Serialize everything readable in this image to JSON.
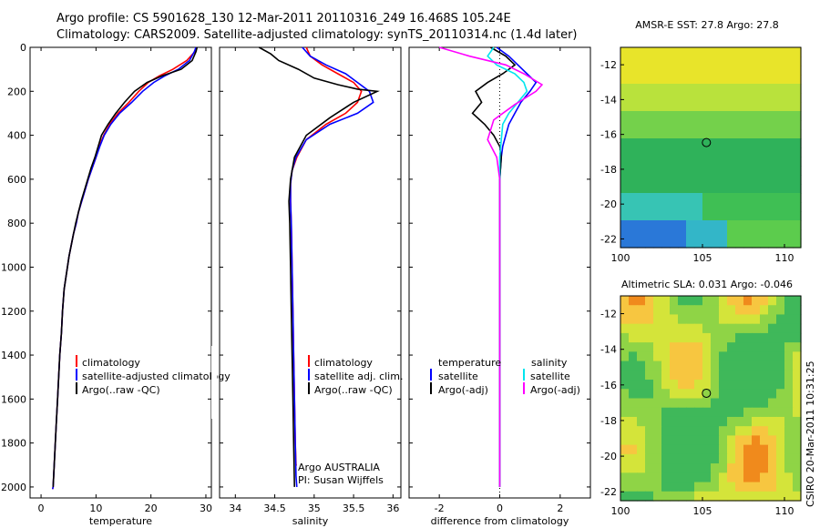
{
  "header": {
    "line1": "Argo profile: CS 5901628_130 12-Mar-2011 20110316_249 16.468S 105.24E",
    "line2": "Climatology: CARS2009. Satellite-adjusted climatology: synTS_20110314.nc (1.4d later)"
  },
  "footer": {
    "side_label": "CSIRO 20-Mar-2011 10:31:25"
  },
  "colors": {
    "climatology": "#ff0000",
    "satellite": "#0000ff",
    "argo": "#000000",
    "sal_sat": "#00e5ee",
    "sal_argo": "#ff00ff"
  },
  "chart_data": [
    {
      "type": "line",
      "id": "temperature",
      "xlabel": "temperature",
      "ylabel": "",
      "xlim": [
        -2,
        31
      ],
      "ylim": [
        2050,
        0
      ],
      "xticks": [
        0,
        10,
        20,
        30
      ],
      "yticks": [
        0,
        200,
        400,
        600,
        800,
        1000,
        1200,
        1400,
        1600,
        1800,
        2000
      ],
      "legend": [
        "climatology",
        "satellite-adjusted climatology",
        "Argo(..raw -QC)"
      ],
      "series": [
        {
          "name": "climatology",
          "x": [
            28.3,
            28.0,
            26.5,
            24.0,
            21.5,
            19.5,
            17.8,
            16.0,
            14.0,
            12.5,
            11.4,
            10.6,
            10.0,
            9.3,
            8.6,
            8.0,
            7.4,
            6.8,
            6.4,
            5.9,
            5.5,
            5.1,
            4.8,
            4.5,
            4.2,
            3.9,
            3.7,
            3.4,
            3.2,
            3.0,
            2.8,
            2.6,
            2.4,
            2.3,
            2.2,
            2.1
          ],
          "y": [
            0,
            20,
            60,
            100,
            130,
            160,
            200,
            250,
            300,
            350,
            400,
            450,
            500,
            550,
            600,
            650,
            700,
            750,
            800,
            850,
            900,
            950,
            1000,
            1050,
            1100,
            1200,
            1300,
            1400,
            1500,
            1600,
            1700,
            1800,
            1900,
            1950,
            2000,
            2010
          ]
        },
        {
          "name": "satellite-adjusted climatology",
          "x": [
            28.2,
            27.9,
            27.0,
            25.0,
            22.5,
            20.5,
            18.5,
            16.5,
            14.3,
            12.7,
            11.5,
            10.7,
            10.0,
            9.3,
            8.6,
            8.0,
            7.4,
            6.8,
            6.4,
            5.9,
            5.5,
            5.1,
            4.8,
            4.5,
            4.2,
            3.9,
            3.7,
            3.4,
            3.2,
            3.0,
            2.8,
            2.6,
            2.4,
            2.3,
            2.2,
            2.1
          ],
          "y": [
            0,
            20,
            60,
            100,
            130,
            160,
            200,
            250,
            300,
            350,
            400,
            450,
            500,
            550,
            600,
            650,
            700,
            750,
            800,
            850,
            900,
            950,
            1000,
            1050,
            1100,
            1200,
            1300,
            1400,
            1500,
            1600,
            1700,
            1800,
            1900,
            1950,
            2000,
            2010
          ]
        },
        {
          "name": "Argo(..raw -QC)",
          "x": [
            28.4,
            28.2,
            27.5,
            25.5,
            22.0,
            19.3,
            17.0,
            15.2,
            13.6,
            12.2,
            11.0,
            10.4,
            9.8,
            9.1,
            8.5,
            7.9,
            7.3,
            6.8,
            6.3,
            5.9,
            5.5,
            5.1,
            4.8,
            4.5,
            4.2,
            3.9,
            3.7,
            3.4,
            3.2,
            3.0,
            2.8,
            2.6,
            2.4,
            2.3,
            2.2
          ],
          "y": [
            0,
            20,
            60,
            100,
            130,
            160,
            200,
            250,
            300,
            350,
            400,
            450,
            500,
            550,
            600,
            650,
            700,
            750,
            800,
            850,
            900,
            950,
            1000,
            1050,
            1100,
            1200,
            1300,
            1400,
            1500,
            1600,
            1700,
            1800,
            1900,
            1950,
            2000
          ]
        }
      ]
    },
    {
      "type": "line",
      "id": "salinity",
      "xlabel": "salinity",
      "ylabel": "",
      "xlim": [
        33.8,
        36.1
      ],
      "ylim": [
        2050,
        0
      ],
      "xticks": [
        34,
        34.5,
        35,
        35.5,
        36
      ],
      "xticklabels": [
        "34",
        "34.5",
        "35",
        "35.5",
        "36"
      ],
      "yticks": [
        0,
        200,
        400,
        600,
        800,
        1000,
        1200,
        1400,
        1600,
        1800,
        2000
      ],
      "legend": [
        "climatology",
        "satellite adj. clim.",
        "Argo(..raw -QC)"
      ],
      "annotations": [
        "Argo AUSTRALIA",
        "PI: Susan Wijffels"
      ],
      "series": [
        {
          "name": "climatology",
          "x": [
            34.9,
            34.95,
            35.1,
            35.3,
            35.5,
            35.6,
            35.55,
            35.4,
            35.15,
            34.9,
            34.78,
            34.72,
            34.7,
            34.7,
            34.71,
            34.72,
            34.73,
            34.74,
            34.75,
            34.76,
            34.77,
            34.78
          ],
          "y": [
            0,
            40,
            80,
            120,
            160,
            200,
            250,
            300,
            350,
            420,
            500,
            560,
            620,
            700,
            800,
            1000,
            1200,
            1400,
            1600,
            1800,
            1900,
            1900
          ]
        },
        {
          "name": "satellite adj. clim.",
          "x": [
            34.85,
            34.95,
            35.15,
            35.4,
            35.55,
            35.7,
            35.75,
            35.55,
            35.2,
            34.9,
            34.77,
            34.72,
            34.7,
            34.7,
            34.71,
            34.72,
            34.73,
            34.74,
            34.75,
            34.76,
            34.77,
            34.78
          ],
          "y": [
            0,
            40,
            80,
            120,
            160,
            200,
            250,
            300,
            350,
            420,
            500,
            560,
            620,
            700,
            800,
            1000,
            1200,
            1400,
            1600,
            1800,
            1950,
            2000
          ]
        },
        {
          "name": "Argo(..raw -QC)",
          "x": [
            34.3,
            34.45,
            34.55,
            34.8,
            35.0,
            35.3,
            35.55,
            35.8,
            35.5,
            35.2,
            34.9,
            34.75,
            34.7,
            34.68,
            34.69,
            34.7,
            34.71,
            34.72,
            34.73,
            34.74,
            34.75
          ],
          "y": [
            0,
            30,
            60,
            100,
            140,
            170,
            190,
            200,
            250,
            320,
            400,
            500,
            600,
            700,
            800,
            1000,
            1200,
            1400,
            1600,
            1800,
            2000
          ]
        }
      ]
    },
    {
      "type": "line",
      "id": "difference",
      "xlabel": "difference from climatology",
      "ylabel": "",
      "xlim": [
        -3,
        3
      ],
      "ylim": [
        2050,
        0
      ],
      "xticks": [
        -2,
        0,
        2
      ],
      "yticks": [
        0,
        200,
        400,
        600,
        800,
        1000,
        1200,
        1400,
        1600,
        1800,
        2000
      ],
      "legend_headers": [
        "temperature",
        "salinity"
      ],
      "legend": [
        "satellite",
        "Argo(-adj)",
        "satellite",
        "Argo(-adj)"
      ],
      "series": [
        {
          "name": "satellite",
          "x": [
            -0.1,
            0.3,
            0.6,
            0.9,
            1.2,
            1.0,
            0.7,
            0.5,
            0.3,
            0.2,
            0.1,
            0.05,
            0,
            0,
            0,
            0,
            0,
            0
          ],
          "y": [
            0,
            40,
            80,
            120,
            160,
            200,
            250,
            300,
            350,
            400,
            450,
            500,
            600,
            800,
            1000,
            1400,
            1800,
            2000
          ]
        },
        {
          "name": "Argo(-adj)",
          "x": [
            -0.3,
            0.2,
            0.5,
            0.1,
            -0.4,
            -0.8,
            -0.6,
            -0.9,
            -0.5,
            -0.2,
            0,
            0.05,
            0,
            0,
            0,
            0,
            0
          ],
          "y": [
            0,
            40,
            80,
            120,
            160,
            200,
            250,
            300,
            350,
            400,
            450,
            500,
            600,
            800,
            1000,
            1400,
            2000
          ]
        },
        {
          "name": "satellite",
          "x": [
            -0.2,
            -0.4,
            -0.1,
            0.5,
            0.8,
            0.9,
            0.6,
            0.3,
            0.1,
            0.05,
            0,
            0,
            0,
            0,
            0
          ],
          "y": [
            0,
            40,
            80,
            120,
            160,
            200,
            250,
            300,
            350,
            420,
            500,
            600,
            800,
            1200,
            2000
          ]
        },
        {
          "name": "Argo(-adj)",
          "x": [
            -2.0,
            -1.0,
            0.2,
            0.8,
            1.4,
            1.2,
            0.5,
            -0.2,
            -0.4,
            -0.1,
            0,
            0,
            0,
            0
          ],
          "y": [
            0,
            40,
            80,
            120,
            170,
            200,
            260,
            330,
            420,
            500,
            600,
            800,
            1200,
            2000
          ]
        }
      ]
    },
    {
      "type": "heatmap",
      "id": "sst_map",
      "title": "AMSR-E SST: 27.8 Argo: 27.8",
      "xlim": [
        100,
        111
      ],
      "ylim": [
        -22.5,
        -11
      ],
      "xticks": [
        100,
        105,
        110
      ],
      "yticks": [
        -12,
        -14,
        -16,
        -18,
        -20,
        -22
      ],
      "marker": [
        105.24,
        -16.468
      ]
    },
    {
      "type": "heatmap",
      "id": "sla_map",
      "title": "Altimetric SLA: 0.031 Argo: -0.046",
      "xlim": [
        100,
        111
      ],
      "ylim": [
        -22.5,
        -11
      ],
      "xticks": [
        100,
        105,
        110
      ],
      "yticks": [
        -12,
        -14,
        -16,
        -18,
        -20,
        -22
      ],
      "marker": [
        105.24,
        -16.468
      ]
    }
  ]
}
